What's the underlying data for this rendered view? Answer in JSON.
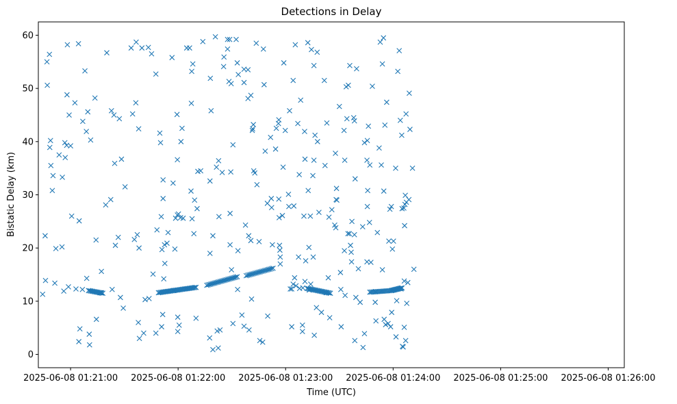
{
  "chart_data": {
    "type": "scatter",
    "title": "Detections in Delay",
    "xlabel": "Time (UTC)",
    "ylabel": "Bistatic Delay (km)",
    "marker": "x",
    "color": "#1f77b4",
    "xlim_seconds": [
      -18,
      309
    ],
    "ylim": [
      -2.5,
      62.5
    ],
    "x_ticks": [
      {
        "t": 0,
        "label": "2025-06-08 01:21:00"
      },
      {
        "t": 60,
        "label": "2025-06-08 01:22:00"
      },
      {
        "t": 120,
        "label": "2025-06-08 01:23:00"
      },
      {
        "t": 180,
        "label": "2025-06-08 01:24:00"
      },
      {
        "t": 240,
        "label": "2025-06-08 01:25:00"
      },
      {
        "t": 300,
        "label": "2025-06-08 01:26:00"
      }
    ],
    "y_ticks": [
      0,
      10,
      20,
      30,
      40,
      50,
      60
    ],
    "x_unit": "seconds after 2025-06-08 01:21:00",
    "points": [
      [
        -15.6,
        11.3
      ],
      [
        -14.2,
        22.3
      ],
      [
        -14.0,
        13.9
      ],
      [
        -13.2,
        55.0
      ],
      [
        -13.0,
        50.6
      ],
      [
        -11.8,
        56.4
      ],
      [
        -11.6,
        38.9
      ],
      [
        -11.2,
        40.2
      ],
      [
        -11.0,
        35.5
      ],
      [
        -10.2,
        30.8
      ],
      [
        -9.8,
        33.6
      ],
      [
        -8.8,
        13.4
      ],
      [
        -8.2,
        19.9
      ],
      [
        -6.4,
        37.5
      ],
      [
        -4.8,
        20.2
      ],
      [
        -4.6,
        33.3
      ],
      [
        -3.8,
        11.9
      ],
      [
        -3.2,
        39.8
      ],
      [
        -3.0,
        37.0
      ],
      [
        -2.2,
        39.3
      ],
      [
        -2.0,
        48.8
      ],
      [
        -1.8,
        58.2
      ],
      [
        -1.2,
        12.7
      ],
      [
        -0.8,
        45.0
      ],
      [
        0.0,
        39.2
      ],
      [
        0.6,
        26.0
      ],
      [
        2.4,
        47.3
      ],
      [
        3.0,
        12.3
      ],
      [
        4.4,
        58.4
      ],
      [
        4.6,
        2.4
      ],
      [
        4.8,
        25.1
      ],
      [
        5.2,
        4.8
      ],
      [
        6.6,
        12.2
      ],
      [
        6.8,
        43.8
      ],
      [
        8.0,
        53.3
      ],
      [
        8.8,
        41.9
      ],
      [
        9.0,
        14.3
      ],
      [
        9.6,
        45.6
      ],
      [
        10.4,
        3.8
      ],
      [
        10.6,
        1.8
      ],
      [
        11.2,
        40.3
      ],
      [
        13.6,
        48.2
      ],
      [
        14.2,
        21.5
      ],
      [
        14.4,
        6.6
      ],
      [
        16.4,
        11.6
      ],
      [
        17.0,
        11.6
      ],
      [
        17.2,
        15.6
      ],
      [
        19.6,
        28.1
      ],
      [
        20.2,
        56.7
      ],
      [
        22.4,
        29.1
      ],
      [
        22.8,
        45.8
      ],
      [
        23.2,
        12.2
      ],
      [
        24.2,
        45.0
      ],
      [
        24.6,
        35.9
      ],
      [
        25.0,
        20.5
      ],
      [
        26.6,
        22.0
      ],
      [
        27.2,
        44.3
      ],
      [
        27.8,
        10.7
      ],
      [
        28.4,
        36.7
      ],
      [
        29.4,
        8.7
      ],
      [
        30.4,
        31.5
      ],
      [
        33.8,
        57.6
      ],
      [
        34.6,
        45.2
      ],
      [
        35.6,
        21.6
      ],
      [
        36.4,
        47.3
      ],
      [
        36.6,
        58.7
      ],
      [
        37.2,
        22.5
      ],
      [
        37.8,
        6.0
      ],
      [
        38.0,
        42.4
      ],
      [
        38.2,
        20.0
      ],
      [
        38.4,
        3.0
      ],
      [
        39.8,
        57.6
      ],
      [
        40.8,
        4.0
      ],
      [
        41.6,
        10.3
      ],
      [
        43.4,
        57.7
      ],
      [
        43.8,
        10.5
      ],
      [
        45.2,
        56.5
      ],
      [
        46.0,
        15.1
      ],
      [
        47.6,
        52.7
      ],
      [
        47.6,
        4.0
      ],
      [
        48.2,
        23.4
      ],
      [
        49.8,
        41.6
      ],
      [
        50.2,
        39.8
      ],
      [
        50.6,
        25.9
      ],
      [
        50.8,
        5.2
      ],
      [
        51.0,
        19.7
      ],
      [
        51.4,
        7.5
      ],
      [
        51.6,
        32.8
      ],
      [
        51.6,
        29.3
      ],
      [
        52.0,
        14.2
      ],
      [
        52.4,
        20.6
      ],
      [
        52.6,
        17.1
      ],
      [
        53.8,
        20.9
      ],
      [
        54.4,
        22.9
      ],
      [
        56.6,
        55.8
      ],
      [
        57.2,
        32.2
      ],
      [
        57.6,
        12.0
      ],
      [
        58.2,
        19.8
      ],
      [
        58.6,
        25.6
      ],
      [
        59.4,
        45.1
      ],
      [
        59.6,
        26.2
      ],
      [
        59.6,
        36.6
      ],
      [
        59.8,
        7.0
      ],
      [
        59.8,
        4.3
      ],
      [
        60.2,
        26.4
      ],
      [
        60.6,
        5.5
      ],
      [
        61.4,
        25.7
      ],
      [
        61.6,
        40.0
      ],
      [
        62.2,
        42.5
      ],
      [
        62.8,
        25.6
      ],
      [
        64.8,
        57.6
      ],
      [
        66.4,
        57.6
      ],
      [
        67.2,
        30.7
      ],
      [
        67.4,
        47.2
      ],
      [
        67.6,
        53.2
      ],
      [
        67.8,
        25.5
      ],
      [
        68.2,
        54.6
      ],
      [
        68.8,
        22.7
      ],
      [
        69.2,
        29.0
      ],
      [
        70.0,
        6.8
      ],
      [
        70.6,
        27.4
      ],
      [
        71.0,
        34.4
      ],
      [
        72.6,
        34.5
      ],
      [
        73.8,
        58.8
      ],
      [
        77.6,
        3.1
      ],
      [
        77.8,
        19.0
      ],
      [
        77.8,
        32.6
      ],
      [
        78.0,
        51.9
      ],
      [
        78.4,
        45.8
      ],
      [
        79.4,
        22.3
      ],
      [
        79.4,
        0.9
      ],
      [
        80.8,
        59.7
      ],
      [
        81.4,
        35.2
      ],
      [
        81.8,
        4.4
      ],
      [
        82.4,
        1.2
      ],
      [
        82.6,
        36.4
      ],
      [
        82.8,
        25.9
      ],
      [
        83.4,
        4.6
      ],
      [
        84.6,
        34.2
      ],
      [
        85.4,
        54.1
      ],
      [
        85.6,
        55.9
      ],
      [
        87.6,
        57.4
      ],
      [
        87.6,
        59.2
      ],
      [
        88.4,
        51.3
      ],
      [
        88.8,
        59.2
      ],
      [
        89.0,
        20.6
      ],
      [
        89.0,
        26.5
      ],
      [
        89.4,
        34.3
      ],
      [
        89.6,
        50.9
      ],
      [
        89.8,
        15.9
      ],
      [
        90.6,
        5.8
      ],
      [
        90.6,
        39.4
      ],
      [
        92.4,
        59.2
      ],
      [
        93.0,
        54.8
      ],
      [
        93.2,
        12.2
      ],
      [
        93.4,
        19.5
      ],
      [
        93.6,
        52.6
      ],
      [
        95.6,
        7.4
      ],
      [
        96.8,
        53.6
      ],
      [
        96.8,
        51.1
      ],
      [
        96.8,
        5.3
      ],
      [
        97.6,
        24.3
      ],
      [
        99.0,
        48.1
      ],
      [
        99.0,
        53.5
      ],
      [
        99.4,
        22.3
      ],
      [
        99.6,
        4.6
      ],
      [
        100.6,
        48.7
      ],
      [
        100.6,
        21.4
      ],
      [
        101.0,
        10.4
      ],
      [
        101.4,
        42.1
      ],
      [
        101.6,
        42.4
      ],
      [
        102.0,
        43.2
      ],
      [
        102.2,
        34.5
      ],
      [
        102.8,
        34.1
      ],
      [
        103.6,
        58.5
      ],
      [
        104.0,
        31.9
      ],
      [
        105.2,
        21.2
      ],
      [
        105.6,
        2.6
      ],
      [
        107.2,
        2.3
      ],
      [
        107.6,
        57.4
      ],
      [
        108.0,
        50.7
      ],
      [
        108.6,
        38.2
      ],
      [
        109.8,
        28.4
      ],
      [
        110.0,
        7.2
      ],
      [
        111.6,
        40.8
      ],
      [
        112.0,
        29.3
      ],
      [
        112.2,
        27.6
      ],
      [
        112.6,
        20.6
      ],
      [
        114.4,
        38.6
      ],
      [
        114.8,
        42.5
      ],
      [
        116.0,
        43.4
      ],
      [
        116.2,
        44.1
      ],
      [
        116.2,
        29.2
      ],
      [
        116.4,
        25.7
      ],
      [
        116.6,
        20.5
      ],
      [
        116.8,
        19.6
      ],
      [
        117.0,
        18.3
      ],
      [
        117.0,
        17.0
      ],
      [
        118.2,
        26.1
      ],
      [
        118.6,
        35.2
      ],
      [
        119.0,
        54.8
      ],
      [
        119.8,
        42.1
      ],
      [
        121.6,
        30.1
      ],
      [
        121.8,
        27.8
      ],
      [
        122.2,
        45.8
      ],
      [
        122.6,
        12.3
      ],
      [
        123.4,
        12.3
      ],
      [
        123.4,
        5.2
      ],
      [
        124.2,
        13.2
      ],
      [
        124.2,
        51.5
      ],
      [
        124.6,
        27.9
      ],
      [
        125.0,
        14.4
      ],
      [
        125.4,
        58.2
      ],
      [
        125.8,
        12.9
      ],
      [
        126.8,
        43.4
      ],
      [
        127.2,
        18.3
      ],
      [
        127.6,
        33.8
      ],
      [
        127.8,
        12.4
      ],
      [
        128.4,
        47.8
      ],
      [
        129.4,
        5.5
      ],
      [
        129.4,
        4.3
      ],
      [
        129.6,
        12.5
      ],
      [
        130.2,
        26.0
      ],
      [
        130.6,
        41.9
      ],
      [
        130.8,
        13.7
      ],
      [
        130.8,
        36.7
      ],
      [
        131.2,
        17.6
      ],
      [
        132.4,
        58.6
      ],
      [
        132.6,
        30.8
      ],
      [
        133.0,
        20.1
      ],
      [
        133.2,
        12.1
      ],
      [
        133.8,
        26.0
      ],
      [
        134.0,
        13.2
      ],
      [
        134.4,
        57.3
      ],
      [
        135.2,
        33.6
      ],
      [
        135.4,
        18.3
      ],
      [
        135.8,
        54.3
      ],
      [
        135.8,
        36.5
      ],
      [
        136.0,
        3.6
      ],
      [
        136.4,
        41.2
      ],
      [
        137.2,
        8.8
      ],
      [
        137.6,
        56.8
      ],
      [
        137.8,
        40.0
      ],
      [
        138.6,
        26.7
      ],
      [
        140.0,
        7.9
      ],
      [
        141.6,
        51.5
      ],
      [
        142.0,
        35.5
      ],
      [
        142.6,
        11.6
      ],
      [
        143.0,
        43.5
      ],
      [
        143.8,
        14.4
      ],
      [
        144.2,
        25.8
      ],
      [
        144.6,
        6.9
      ],
      [
        145.8,
        27.2
      ],
      [
        147.4,
        24.3
      ],
      [
        147.8,
        37.8
      ],
      [
        148.0,
        23.8
      ],
      [
        148.2,
        29.1
      ],
      [
        148.4,
        31.2
      ],
      [
        148.6,
        29.0
      ],
      [
        150.0,
        46.6
      ],
      [
        150.6,
        15.4
      ],
      [
        150.8,
        12.2
      ],
      [
        151.0,
        5.2
      ],
      [
        152.6,
        42.1
      ],
      [
        152.8,
        19.5
      ],
      [
        153.0,
        36.5
      ],
      [
        153.2,
        11.1
      ],
      [
        153.8,
        50.3
      ],
      [
        154.2,
        44.3
      ],
      [
        154.8,
        22.7
      ],
      [
        155.0,
        50.6
      ],
      [
        155.6,
        22.7
      ],
      [
        155.8,
        54.3
      ],
      [
        156.2,
        20.5
      ],
      [
        156.6,
        19.2
      ],
      [
        156.8,
        17.4
      ],
      [
        157.0,
        25.0
      ],
      [
        158.0,
        44.5
      ],
      [
        158.4,
        43.9
      ],
      [
        158.4,
        22.5
      ],
      [
        158.6,
        2.6
      ],
      [
        158.8,
        33.0
      ],
      [
        159.2,
        10.7
      ],
      [
        159.6,
        53.7
      ],
      [
        160.6,
        16.1
      ],
      [
        161.6,
        9.8
      ],
      [
        163.2,
        1.3
      ],
      [
        164.0,
        3.9
      ],
      [
        164.0,
        39.8
      ],
      [
        165.4,
        17.4
      ],
      [
        165.4,
        36.5
      ],
      [
        165.6,
        27.8
      ],
      [
        165.6,
        40.2
      ],
      [
        165.8,
        30.8
      ],
      [
        166.2,
        42.9
      ],
      [
        166.8,
        24.8
      ],
      [
        167.0,
        35.6
      ],
      [
        167.6,
        17.3
      ],
      [
        168.4,
        50.4
      ],
      [
        170.0,
        9.8
      ],
      [
        170.4,
        6.3
      ],
      [
        171.2,
        22.9
      ],
      [
        172.2,
        38.8
      ],
      [
        172.8,
        58.7
      ],
      [
        173.4,
        35.6
      ],
      [
        174.0,
        15.9
      ],
      [
        174.0,
        54.6
      ],
      [
        174.6,
        59.5
      ],
      [
        174.8,
        30.7
      ],
      [
        175.0,
        6.6
      ],
      [
        175.4,
        43.1
      ],
      [
        175.8,
        5.6
      ],
      [
        176.4,
        47.4
      ],
      [
        177.2,
        5.8
      ],
      [
        178.6,
        5.2
      ],
      [
        179.2,
        7.9
      ],
      [
        179.6,
        19.8
      ],
      [
        180.2,
        21.3
      ],
      [
        181.4,
        35.0
      ],
      [
        181.6,
        3.3
      ],
      [
        182.0,
        10.1
      ],
      [
        182.6,
        53.2
      ],
      [
        183.4,
        57.1
      ],
      [
        184.0,
        44.0
      ],
      [
        184.8,
        41.2
      ],
      [
        185.0,
        27.4
      ],
      [
        185.6,
        1.4
      ],
      [
        186.0,
        27.5
      ],
      [
        186.2,
        13.8
      ],
      [
        186.2,
        5.1
      ],
      [
        186.4,
        24.2
      ],
      [
        186.6,
        28.2
      ],
      [
        186.8,
        29.9
      ],
      [
        187.0,
        2.6
      ],
      [
        187.2,
        45.2
      ],
      [
        187.4,
        28.6
      ],
      [
        187.6,
        9.6
      ],
      [
        188.2,
        13.5
      ],
      [
        188.8,
        29.1
      ],
      [
        189.0,
        49.1
      ],
      [
        189.4,
        42.3
      ],
      [
        190.8,
        35.0
      ],
      [
        191.6,
        16.0
      ],
      [
        177.6,
        21.3
      ],
      [
        178.2,
        27.3
      ],
      [
        179.0,
        27.8
      ],
      [
        184.4,
        12.3
      ],
      [
        185.2,
        1.5
      ],
      [
        163.0,
        24.0
      ],
      [
        170.2,
        11.8
      ]
    ],
    "tracks": [
      {
        "t_start": 10.0,
        "t_end": 18.0,
        "y_start": 12.0,
        "y_end": 11.5,
        "count": 14
      },
      {
        "t_start": 49.0,
        "t_end": 70.0,
        "y_start": 11.6,
        "y_end": 12.6,
        "count": 34
      },
      {
        "t_start": 76.0,
        "t_end": 93.0,
        "y_start": 13.0,
        "y_end": 14.6,
        "count": 24
      },
      {
        "t_start": 98.0,
        "t_end": 113.0,
        "y_start": 14.8,
        "y_end": 16.2,
        "count": 20
      },
      {
        "t_start": 132.0,
        "t_end": 145.0,
        "y_start": 12.4,
        "y_end": 11.5,
        "count": 22
      },
      {
        "t_start": 167.0,
        "t_end": 179.0,
        "y_start": 11.7,
        "y_end": 12.0,
        "count": 18
      },
      {
        "t_start": 179.0,
        "t_end": 185.0,
        "y_start": 12.0,
        "y_end": 12.5,
        "count": 14
      }
    ]
  }
}
